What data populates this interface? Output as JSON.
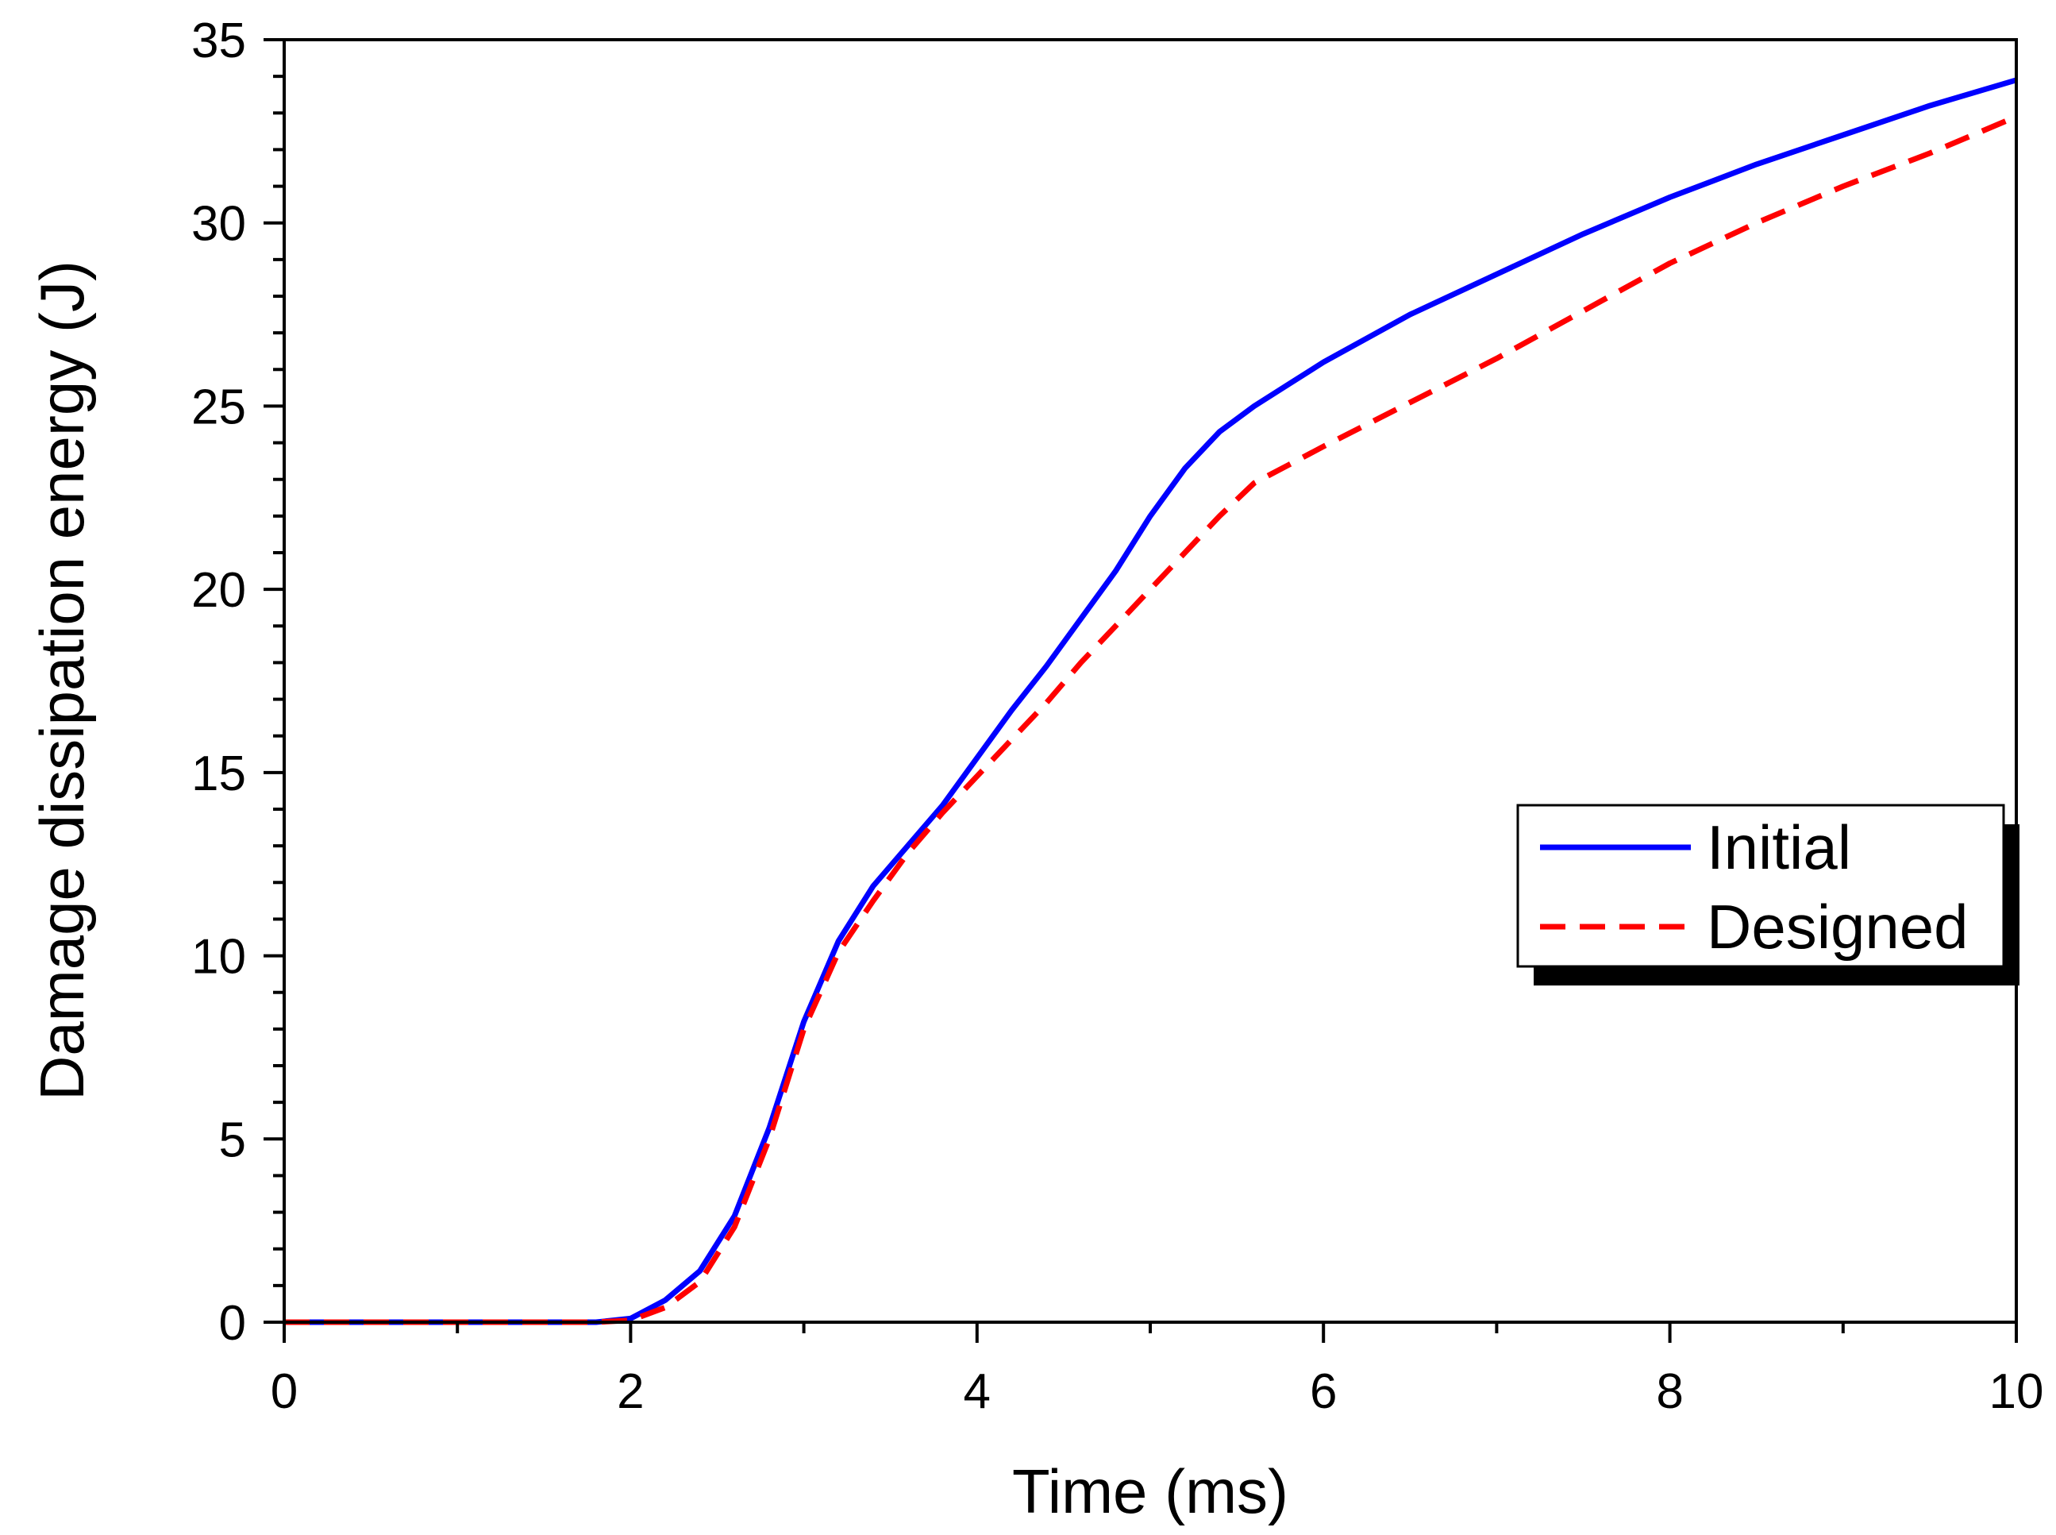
{
  "chart_data": {
    "type": "line",
    "title": "",
    "xlabel": "Time (ms)",
    "ylabel": "Damage dissipation energy (J)",
    "xlim": [
      0,
      10
    ],
    "ylim": [
      0,
      35
    ],
    "grid": false,
    "xticks": [
      0,
      2,
      4,
      6,
      8,
      10
    ],
    "xtick_labels": [
      "0",
      "2",
      "4",
      "6",
      "8",
      "10"
    ],
    "yticks": [
      0,
      5,
      10,
      15,
      20,
      25,
      30,
      35
    ],
    "ytick_labels": [
      "0",
      "5",
      "10",
      "15",
      "20",
      "25",
      "30",
      "35"
    ],
    "legend_position": "right",
    "series": [
      {
        "name": "Initial",
        "color": "#0000ff",
        "style": "solid",
        "x": [
          0,
          1,
          1.8,
          2.0,
          2.2,
          2.4,
          2.6,
          2.8,
          3.0,
          3.2,
          3.4,
          3.6,
          3.8,
          4.0,
          4.2,
          4.4,
          4.6,
          4.8,
          5.0,
          5.2,
          5.4,
          5.6,
          5.8,
          6.0,
          6.5,
          7.0,
          7.5,
          8.0,
          8.5,
          9.0,
          9.5,
          10.0
        ],
        "y": [
          0,
          0,
          0,
          0.1,
          0.6,
          1.4,
          2.9,
          5.3,
          8.2,
          10.4,
          11.9,
          13.0,
          14.1,
          15.4,
          16.7,
          17.9,
          19.2,
          20.5,
          22.0,
          23.3,
          24.3,
          25.0,
          25.6,
          26.2,
          27.5,
          28.6,
          29.7,
          30.7,
          31.6,
          32.4,
          33.2,
          33.9
        ]
      },
      {
        "name": "Designed",
        "color": "#ff0000",
        "style": "dashed",
        "x": [
          0,
          1,
          1.8,
          2.0,
          2.2,
          2.4,
          2.6,
          2.8,
          3.0,
          3.2,
          3.4,
          3.6,
          3.8,
          4.0,
          4.2,
          4.4,
          4.6,
          4.8,
          5.0,
          5.2,
          5.4,
          5.6,
          5.8,
          6.0,
          6.5,
          7.0,
          7.5,
          8.0,
          8.5,
          9.0,
          9.5,
          10.0
        ],
        "y": [
          0,
          0,
          0,
          0.05,
          0.4,
          1.1,
          2.6,
          5.0,
          8.0,
          10.1,
          11.5,
          12.8,
          13.9,
          14.9,
          15.9,
          16.9,
          18.0,
          19.0,
          20.0,
          21.0,
          22.0,
          22.9,
          23.4,
          23.9,
          25.1,
          26.3,
          27.6,
          28.9,
          30.0,
          31.0,
          31.9,
          32.9
        ]
      }
    ]
  }
}
